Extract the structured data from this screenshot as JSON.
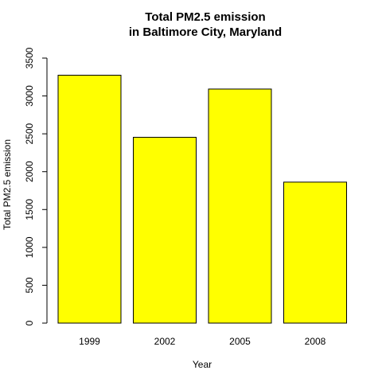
{
  "chart_data": {
    "type": "bar",
    "title_line1": "Total PM2.5 emission",
    "title_line2": "in Baltimore City, Maryland",
    "xlabel": "Year",
    "ylabel": "Total PM2.5 emission",
    "categories": [
      "1999",
      "2002",
      "2005",
      "2008"
    ],
    "values": [
      3274,
      2454,
      3091,
      1862
    ],
    "ylim": [
      0,
      3500
    ],
    "yticks": [
      0,
      500,
      1000,
      1500,
      2000,
      2500,
      3000,
      3500
    ],
    "ytick_labels": [
      "0",
      "500",
      "1000",
      "1500",
      "2000",
      "2500",
      "3000",
      "3500"
    ],
    "bar_color": "#ffff00",
    "grid": false,
    "legend": "none"
  }
}
